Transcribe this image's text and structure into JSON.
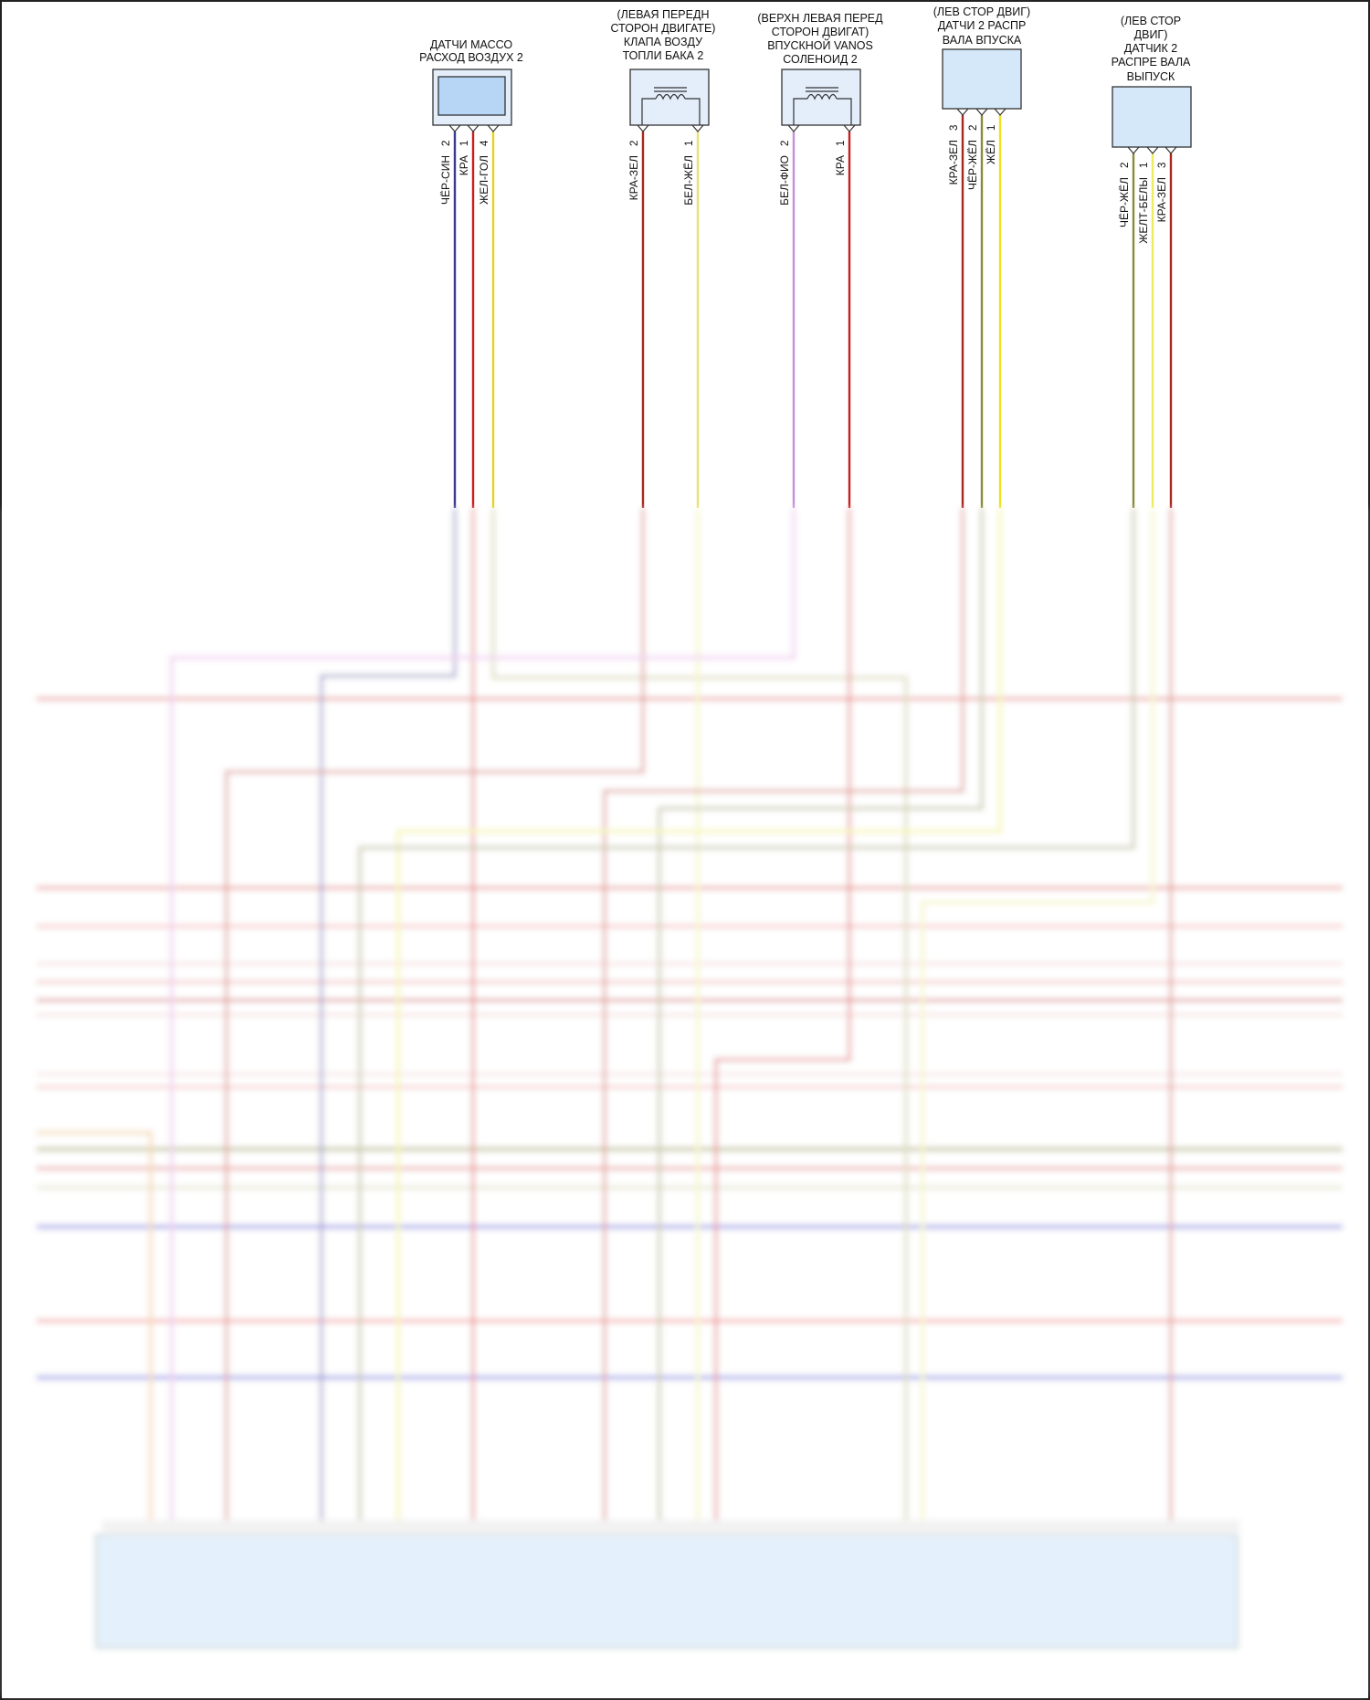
{
  "components": [
    {
      "id": "maf",
      "label_lines": [
        "ДАТЧИ МАССО",
        "РАСХОД ВОЗДУХ 2"
      ],
      "pins": [
        {
          "num": "2",
          "wire": "ЧЁР-СИН",
          "color": "#3a3a8c"
        },
        {
          "num": "1",
          "wire": "КРА",
          "color": "#c81e1e"
        },
        {
          "num": "4",
          "wire": "ЖЕЛ-ГОЛ",
          "color": "#e6d21e"
        }
      ]
    },
    {
      "id": "tank-valve",
      "label_lines": [
        "(ЛЕВАЯ ПЕРЕДН",
        "СТОРОН ДВИГАТЕ)",
        "КЛАПА ВОЗДУ",
        "ТОПЛИ БАКА 2"
      ],
      "pins": [
        {
          "num": "2",
          "wire": "КРА-ЗЕЛ",
          "color": "#a8281e"
        },
        {
          "num": "1",
          "wire": "БЕЛ-ЖЁЛ",
          "color": "#e8e070"
        }
      ]
    },
    {
      "id": "vanos",
      "label_lines": [
        "(ВЕРХН ЛЕВАЯ ПЕРЕД",
        "СТОРОН ДВИГАТ)",
        "ВПУСКНОЙ VANOS",
        "СОЛЕНОИД 2"
      ],
      "pins": [
        {
          "num": "2",
          "wire": "БЕЛ-ФИО",
          "color": "#c890d8"
        },
        {
          "num": "1",
          "wire": "КРА",
          "color": "#c81e1e"
        }
      ]
    },
    {
      "id": "cam-intake",
      "label_lines": [
        "(ЛЕВ СТОР ДВИГ)",
        "ДАТЧИ 2 РАСПР",
        "ВАЛА ВПУСКА"
      ],
      "pins": [
        {
          "num": "3",
          "wire": "КРА-ЗЕЛ",
          "color": "#a8281e"
        },
        {
          "num": "2",
          "wire": "ЧЁР-ЖЁЛ",
          "color": "#8a8a38"
        },
        {
          "num": "1",
          "wire": "ЖЁЛ",
          "color": "#f0e020"
        }
      ]
    },
    {
      "id": "cam-exhaust",
      "label_lines": [
        "(ЛЕВ СТОР",
        "ДВИГ)",
        "ДАТЧИК 2",
        "РАСПРЕ ВАЛА",
        "ВЫПУСК"
      ],
      "pins": [
        {
          "num": "2",
          "wire": "ЧЁР-ЖЁЛ",
          "color": "#8a8a38"
        },
        {
          "num": "1",
          "wire": "ЖЕЛТ-БЕЛЫ",
          "color": "#ecec60"
        },
        {
          "num": "3",
          "wire": "КРА-ЗЕЛ",
          "color": "#a8281e"
        }
      ]
    }
  ]
}
